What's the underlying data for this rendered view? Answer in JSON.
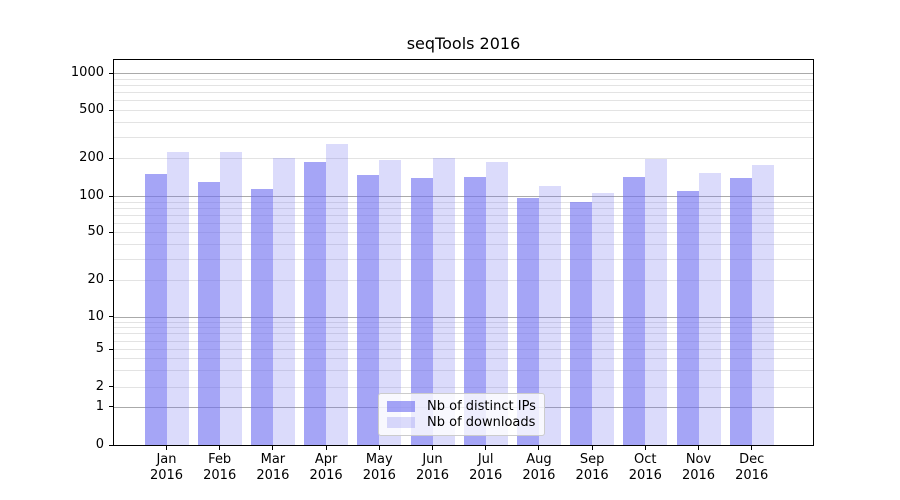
{
  "title": "seqTools 2016",
  "chart_data": {
    "type": "bar",
    "title": "seqTools 2016",
    "categories": [
      "Jan 2016",
      "Feb 2016",
      "Mar 2016",
      "Apr 2016",
      "May 2016",
      "Jun 2016",
      "Jul 2016",
      "Aug 2016",
      "Sep 2016",
      "Oct 2016",
      "Nov 2016",
      "Dec 2016"
    ],
    "series": [
      {
        "name": "Nb of distinct IPs",
        "values": [
          149,
          129,
          114,
          186,
          146,
          140,
          141,
          96,
          90,
          142,
          110,
          138
        ]
      },
      {
        "name": "Nb of downloads",
        "values": [
          224,
          226,
          202,
          262,
          195,
          200,
          186,
          121,
          106,
          198,
          152,
          177
        ]
      }
    ],
    "xlabel": "",
    "ylabel": "",
    "yticks": [
      0,
      1,
      2,
      5,
      10,
      20,
      50,
      100,
      200,
      500,
      1000
    ],
    "ylim": [
      0,
      1320
    ],
    "yscale": "log above 1 with compressed linear segment to 0",
    "grid": "horizontal, major decade lines dark gray, minor log subdivisions light gray",
    "legend_position": "inside axes, lower center-left"
  },
  "legend": {
    "items": [
      {
        "label": "Nb of distinct IPs"
      },
      {
        "label": "Nb of downloads"
      }
    ]
  },
  "colors": {
    "bar_base": "#6e6ef0",
    "bar_dark_alpha": 0.62,
    "bar_light_alpha": 0.25,
    "grid_major": "#aaaaaa",
    "grid_minor": "#e3e3e3",
    "axis_line": "#000000",
    "legend_border": "#cccccc"
  }
}
